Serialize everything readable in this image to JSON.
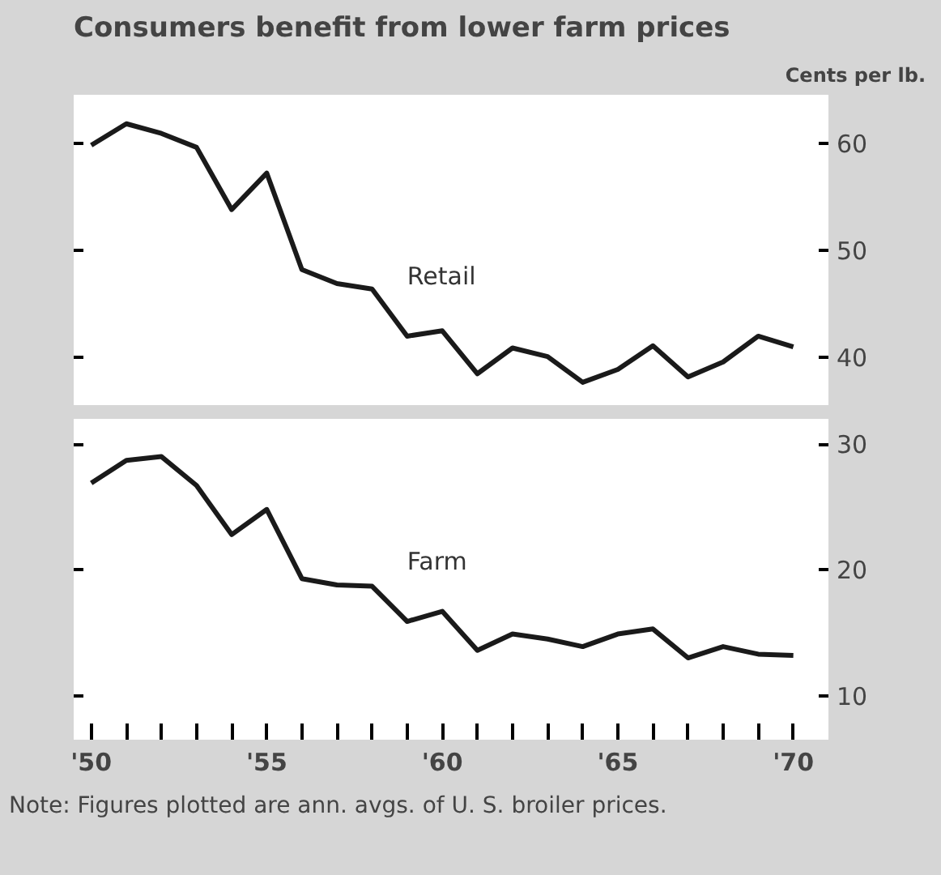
{
  "chart_data": [
    {
      "type": "line",
      "title": "Consumers benefit from lower farm prices",
      "ylabel": "Cents per lb.",
      "x": [
        1950,
        1951,
        1952,
        1953,
        1954,
        1955,
        1956,
        1957,
        1958,
        1959,
        1960,
        1961,
        1962,
        1963,
        1964,
        1965,
        1966,
        1967,
        1968,
        1969,
        1970
      ],
      "series": [
        {
          "name": "Retail",
          "color": "#1a1a1a",
          "values": [
            59.8,
            61.8,
            60.9,
            59.6,
            53.8,
            57.2,
            48.2,
            46.9,
            46.4,
            42.0,
            42.5,
            38.5,
            40.9,
            40.1,
            37.7,
            38.9,
            41.1,
            38.2,
            39.6,
            42.0,
            41.0
          ]
        }
      ],
      "xlim": [
        1949.5,
        1971
      ],
      "ylim": [
        35.5,
        64.5
      ],
      "yticks": [
        40,
        50,
        60
      ],
      "tick_labels": "y",
      "grid": false,
      "legend": false
    },
    {
      "type": "line",
      "x": [
        1950,
        1951,
        1952,
        1953,
        1954,
        1955,
        1956,
        1957,
        1958,
        1959,
        1960,
        1961,
        1962,
        1963,
        1964,
        1965,
        1966,
        1967,
        1968,
        1969,
        1970
      ],
      "series": [
        {
          "name": "Farm",
          "color": "#1a1a1a",
          "values": [
            26.9,
            28.7,
            29.0,
            26.7,
            22.8,
            24.8,
            19.3,
            18.8,
            18.7,
            15.9,
            16.7,
            13.6,
            14.9,
            14.5,
            13.9,
            14.9,
            15.3,
            13.0,
            13.9,
            13.3,
            13.2
          ]
        }
      ],
      "xlim": [
        1949.5,
        1971
      ],
      "ylim": [
        6.5,
        32
      ],
      "yticks": [
        10,
        20,
        30
      ],
      "xticks": [
        {
          "value": 1950,
          "label": "'50"
        },
        {
          "value": 1951,
          "label": null
        },
        {
          "value": 1952,
          "label": null
        },
        {
          "value": 1953,
          "label": null
        },
        {
          "value": 1954,
          "label": null
        },
        {
          "value": 1955,
          "label": "'55"
        },
        {
          "value": 1956,
          "label": null
        },
        {
          "value": 1957,
          "label": null
        },
        {
          "value": 1958,
          "label": null
        },
        {
          "value": 1959,
          "label": null
        },
        {
          "value": 1960,
          "label": "'60"
        },
        {
          "value": 1961,
          "label": null
        },
        {
          "value": 1962,
          "label": null
        },
        {
          "value": 1963,
          "label": null
        },
        {
          "value": 1964,
          "label": null
        },
        {
          "value": 1965,
          "label": "'65"
        },
        {
          "value": 1966,
          "label": null
        },
        {
          "value": 1967,
          "label": null
        },
        {
          "value": 1968,
          "label": null
        },
        {
          "value": 1969,
          "label": null
        },
        {
          "value": 1970,
          "label": "'70"
        }
      ],
      "grid": false,
      "legend": false,
      "annotations": [
        "Note:  Figures plotted are ann. avgs. of U. S. broiler prices."
      ]
    }
  ]
}
